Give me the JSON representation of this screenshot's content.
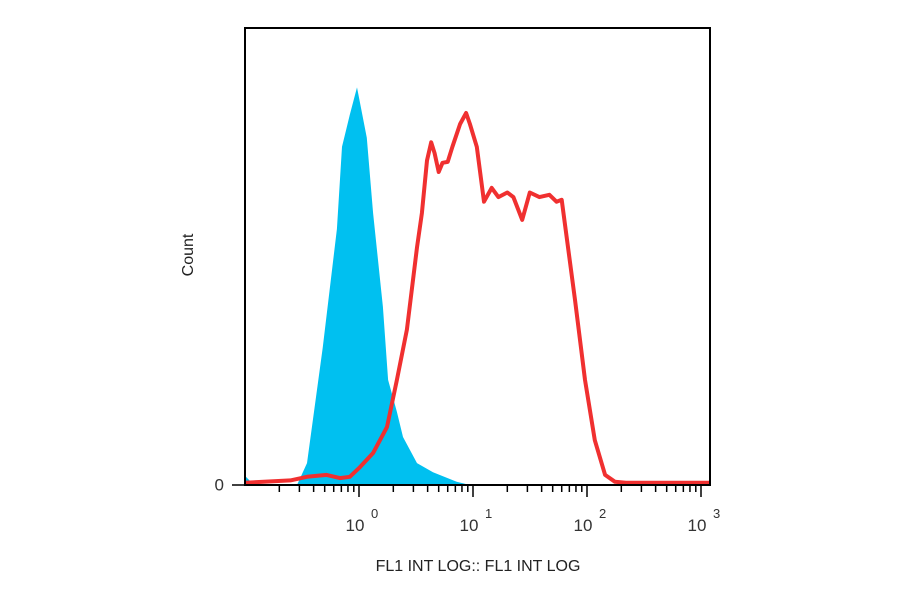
{
  "chart_data": {
    "type": "area",
    "title": "",
    "xlabel": "FL1 INT LOG:: FL1 INT LOG",
    "ylabel": "Count",
    "x_scale": "log",
    "xlim": [
      0.1,
      1200
    ],
    "ylim": [
      0,
      100
    ],
    "y_ticks": [
      {
        "value": 0,
        "label": "0"
      }
    ],
    "x_ticks": [
      {
        "value": 1,
        "base": "10",
        "exp": "0"
      },
      {
        "value": 10,
        "base": "10",
        "exp": "1"
      },
      {
        "value": 100,
        "base": "10",
        "exp": "2"
      },
      {
        "value": 1000,
        "base": "10",
        "exp": "3"
      }
    ],
    "grid": false,
    "series": [
      {
        "style": "filled",
        "color": "#00c0f0",
        "points": [
          [
            0.1,
            2
          ],
          [
            0.12,
            0
          ],
          [
            0.286,
            0
          ],
          [
            0.35,
            4.8
          ],
          [
            0.48,
            30
          ],
          [
            0.64,
            56
          ],
          [
            0.71,
            74
          ],
          [
            0.83,
            81
          ],
          [
            0.96,
            87
          ],
          [
            1.17,
            76
          ],
          [
            1.33,
            59.5
          ],
          [
            1.62,
            39
          ],
          [
            1.8,
            23
          ],
          [
            2.15,
            16
          ],
          [
            2.43,
            10.5
          ],
          [
            3.23,
            4.8
          ],
          [
            4.46,
            2.8
          ],
          [
            7.2,
            0.7
          ],
          [
            9.4,
            0
          ]
        ]
      },
      {
        "style": "line",
        "color": "#f03030",
        "points": [
          [
            0.1,
            0.5
          ],
          [
            0.25,
            1
          ],
          [
            0.35,
            1.8
          ],
          [
            0.52,
            2.2
          ],
          [
            0.68,
            1.5
          ],
          [
            0.83,
            1.8
          ],
          [
            1.0,
            3.7
          ],
          [
            1.33,
            7
          ],
          [
            1.76,
            12.7
          ],
          [
            2.15,
            23
          ],
          [
            2.63,
            34
          ],
          [
            3.23,
            52
          ],
          [
            3.56,
            59.5
          ],
          [
            3.95,
            71
          ],
          [
            4.3,
            75
          ],
          [
            4.6,
            72.6
          ],
          [
            5.0,
            68.5
          ],
          [
            5.4,
            70.5
          ],
          [
            6.0,
            70.7
          ],
          [
            6.6,
            74
          ],
          [
            7.7,
            79
          ],
          [
            8.7,
            81.4
          ],
          [
            9.4,
            79
          ],
          [
            10.8,
            74
          ],
          [
            12.5,
            62
          ],
          [
            14.6,
            65
          ],
          [
            16.7,
            63
          ],
          [
            20,
            64
          ],
          [
            22.6,
            63
          ],
          [
            27,
            58
          ],
          [
            31.5,
            64
          ],
          [
            38.2,
            63
          ],
          [
            46.8,
            63.5
          ],
          [
            54,
            62
          ],
          [
            60,
            62.4
          ],
          [
            78.5,
            40.5
          ],
          [
            96,
            23
          ],
          [
            117,
            9.8
          ],
          [
            144,
            2.2
          ],
          [
            176,
            0.7
          ],
          [
            220,
            0.5
          ],
          [
            1200,
            0.5
          ]
        ]
      }
    ]
  }
}
